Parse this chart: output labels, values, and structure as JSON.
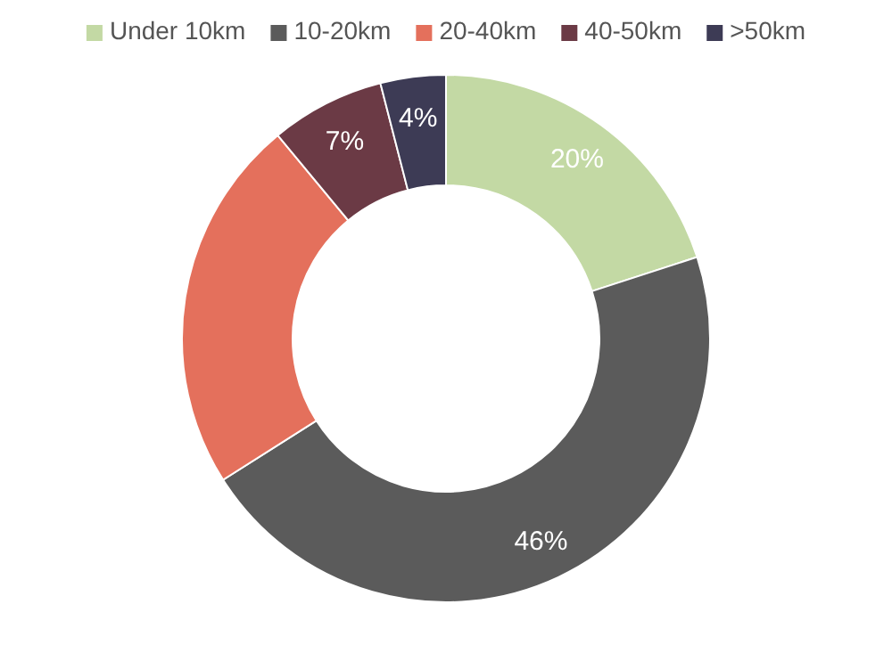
{
  "chart_data": {
    "type": "donut",
    "categories": [
      "Under 10km",
      "10-20km",
      "20-40km",
      "40-50km",
      ">50km"
    ],
    "values": [
      20,
      46,
      23,
      7,
      4
    ],
    "value_labels": [
      "20%",
      "46%",
      null,
      "7%",
      "4%"
    ],
    "colors": [
      "#c3d9a4",
      "#5b5b5b",
      "#e4705c",
      "#6b3a45",
      "#3d3b55"
    ],
    "legend": "top"
  }
}
